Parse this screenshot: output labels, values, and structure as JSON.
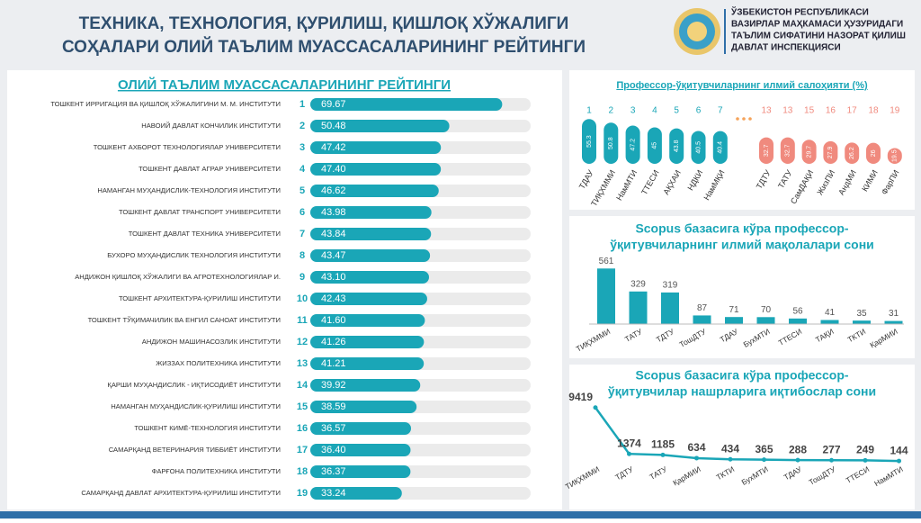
{
  "header": {
    "title_lines": [
      "ТЕХНИКА, ТЕХНОЛОГИЯ, ҚУРИЛИШ, ҚИШЛОҚ ХЎЖАЛИГИ",
      "СОҲАЛАРИ ОЛИЙ ТАЪЛИМ МУАССАСАЛАРИНИНГ РЕЙТИНГИ"
    ],
    "org_lines": [
      "ЎЗБЕКИСТОН РЕСПУБЛИКАСИ",
      "ВАЗИРЛАР МАҲКАМАСИ ҲУЗУРИДАГИ",
      "ТАЪЛИМ СИФАТИНИ НАЗОРАТ ҚИЛИШ",
      "ДАВЛАТ ИНСПЕКЦИЯСИ"
    ]
  },
  "chart_data": [
    {
      "type": "hbar",
      "title": "ОЛИЙ ТАЪЛИМ МУАССАСАЛАРИНИНГ РЕЙТИНГИ",
      "color": "#1aa6b7",
      "xlim": [
        0,
        80
      ],
      "categories": [
        "ТОШКЕНТ ИРРИГАЦИЯ ВА ҚИШЛОҚ ХЎЖАЛИГИНИ М. М. ИНСТИТУТИ",
        "НАВОИЙ ДАВЛАТ КОНЧИЛИК ИНСТИТУТИ",
        "ТОШКЕНТ АХБОРОТ ТЕХНОЛОГИЯЛАР УНИВЕРСИТЕТИ",
        "ТОШКЕНТ ДАВЛАТ АГРАР УНИВЕРСИТЕТИ",
        "НАМАНГАН МУҲАНДИСЛИК-ТЕХНОЛОГИЯ ИНСТИТУТИ",
        "ТОШКЕНТ ДАВЛАТ ТРАНСПОРТ УНИВЕРСИТЕТИ",
        "ТОШКЕНТ ДАВЛАТ ТЕХНИКА УНИВЕРСИТЕТИ",
        "БУХОРО МУҲАНДИСЛИК ТЕХНОЛОГИЯ ИНСТИТУТИ",
        "АНДИЖОН ҚИШЛОҚ ХЎЖАЛИГИ ВА АГРОТЕХНОЛОГИЯЛАР И.",
        "ТОШКЕНТ АРХИТЕКТУРА-ҚУРИЛИШ ИНСТИТУТИ",
        "ТОШКЕНТ ТЎҚИМАЧИЛИК ВА ЕНГИЛ САНОАТ ИНСТИТУТИ",
        "АНДИЖОН МАШИНАСОЗЛИК ИНСТИТУТИ",
        "ЖИЗЗАХ ПОЛИТЕХНИКА ИНСТИТУТИ",
        "ҚАРШИ МУҲАНДИСЛИК - ИҚТИСОДИЁТ ИНСТИТУТИ",
        "НАМАНГАН МУҲАНДИСЛИК-ҚУРИЛИШ ИНСТИТУТИ",
        "ТОШКЕНТ КИМЁ-ТЕХНОЛОГИЯ ИНСТИТУТИ",
        "САМАРҚАНД ВЕТЕРИНАРИЯ ТИББИЁТ ИНСТИТУТИ",
        "ФАРҒОНА ПОЛИТЕХНИКА ИНСТИТУТИ",
        "САМАРҚАНД ДАВЛАТ АРХИТЕКТУРА-ҚУРИЛИШ ИНСТИТУТИ"
      ],
      "ranks": [
        1,
        2,
        3,
        4,
        5,
        6,
        7,
        8,
        9,
        10,
        11,
        12,
        13,
        14,
        15,
        16,
        17,
        18,
        19
      ],
      "values": [
        69.67,
        50.48,
        47.42,
        47.4,
        46.62,
        43.98,
        43.84,
        43.47,
        43.1,
        42.43,
        41.6,
        41.26,
        41.21,
        39.92,
        38.59,
        36.57,
        36.4,
        36.37,
        33.24
      ],
      "value_labels": [
        "69.67",
        "50.48",
        "47.42",
        "47.40",
        "46.62",
        "43.98",
        "43.84",
        "43.47",
        "43.10",
        "42.43",
        "41.60",
        "41.26",
        "41.21",
        "39.92",
        "38.59",
        "36.57",
        "36.40",
        "36.37",
        "33.24"
      ]
    },
    {
      "type": "pill",
      "title": "Профессор-ўқитувчиларнинг илмий салоҳияти (%)",
      "ylim": [
        0,
        60
      ],
      "ranks": [
        1,
        2,
        3,
        4,
        5,
        6,
        7,
        13,
        13,
        15,
        16,
        17,
        18,
        19
      ],
      "categories": [
        "ТДАУ",
        "ТИҚХММИ",
        "НамМТИ",
        "ТТЕСИ",
        "АҚХАИ",
        "НДКИ",
        "НамМҚИ",
        "ТДТУ",
        "ТАТУ",
        "СамДАҚИ",
        "ЖизПИ",
        "АндМИ",
        "КИМИ",
        "ФарПИ"
      ],
      "values": [
        55.3,
        50.8,
        47.2,
        45,
        43.8,
        40.5,
        40.4,
        32.7,
        32.7,
        29.7,
        27.9,
        26.2,
        26,
        19.5
      ],
      "colors": [
        "#1aa6b7",
        "#1aa6b7",
        "#1aa6b7",
        "#1aa6b7",
        "#1aa6b7",
        "#1aa6b7",
        "#1aa6b7",
        "#f08a7e",
        "#f08a7e",
        "#f08a7e",
        "#f08a7e",
        "#f08a7e",
        "#f08a7e",
        "#f08a7e"
      ]
    },
    {
      "type": "bar",
      "title": [
        "Scopus базасига кўра профессор-",
        "ўқитувчиларнинг илмий мақолалари сони"
      ],
      "color": "#1aa6b7",
      "ylim": [
        0,
        600
      ],
      "categories": [
        "ТИҚХММИ",
        "ТАТУ",
        "ТДТУ",
        "ТошДТУ",
        "ТДАУ",
        "БухМТИ",
        "ТТЕСИ",
        "ТАҚИ",
        "ТКТИ",
        "ҚарМИИ"
      ],
      "values": [
        561,
        329,
        319,
        87,
        71,
        70,
        56,
        41,
        35,
        31
      ]
    },
    {
      "type": "line",
      "title": [
        "Scopus базасига кўра профессор-",
        "ўқитувчилар нашрларига иқтибослар сони"
      ],
      "color": "#1aa6b7",
      "ylim": [
        0,
        10000
      ],
      "categories": [
        "ТИҚХММИ",
        "ТДТУ",
        "ТАТУ",
        "ҚарМИИ",
        "ТКТИ",
        "БухМТИ",
        "ТДАУ",
        "ТошДТУ",
        "ТТЕСИ",
        "НамМТИ"
      ],
      "values": [
        9419,
        1374,
        1185,
        634,
        434,
        365,
        288,
        277,
        249,
        144
      ]
    }
  ]
}
